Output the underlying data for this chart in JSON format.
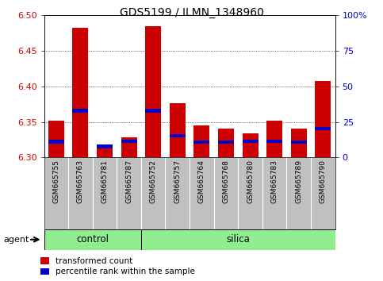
{
  "title": "GDS5199 / ILMN_1348960",
  "samples": [
    "GSM665755",
    "GSM665763",
    "GSM665781",
    "GSM665787",
    "GSM665752",
    "GSM665757",
    "GSM665764",
    "GSM665768",
    "GSM665780",
    "GSM665783",
    "GSM665789",
    "GSM665790"
  ],
  "red_values": [
    6.352,
    6.483,
    6.317,
    6.328,
    6.485,
    6.376,
    6.345,
    6.34,
    6.334,
    6.352,
    6.34,
    6.408
  ],
  "blue_positions": [
    6.3195,
    6.363,
    6.313,
    6.32,
    6.363,
    6.328,
    6.319,
    6.319,
    6.32,
    6.32,
    6.319,
    6.338
  ],
  "blue_heights": [
    0.005,
    0.005,
    0.005,
    0.005,
    0.005,
    0.005,
    0.005,
    0.005,
    0.005,
    0.005,
    0.005,
    0.005
  ],
  "y_min": 6.3,
  "y_max": 6.5,
  "y_ticks_left": [
    6.3,
    6.35,
    6.4,
    6.45,
    6.5
  ],
  "y_ticks_right_pct": [
    0,
    25,
    50,
    75,
    100
  ],
  "bar_width": 0.65,
  "agent_label": "agent",
  "legend_red": "transformed count",
  "legend_blue": "percentile rank within the sample",
  "red_color": "#CC0000",
  "blue_color": "#0000CC",
  "label_bg_color": "#C0C0C0",
  "group_color": "#90EE90",
  "control_count": 4,
  "silica_count": 8
}
